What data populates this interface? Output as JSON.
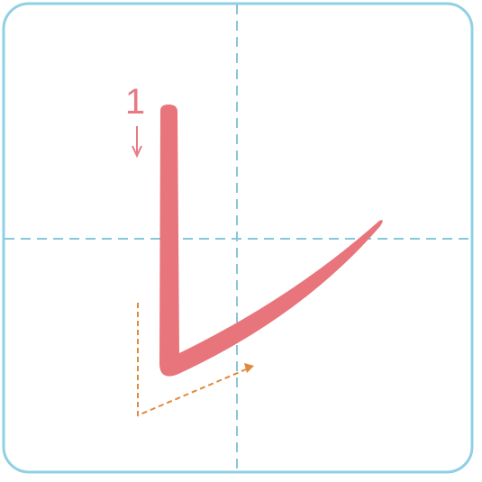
{
  "stroke": {
    "order_number": "1",
    "direction_icon": "down-arrow-icon",
    "guide_icon": "stroke-path-guide-icon"
  },
  "colors": {
    "frame_border": "#8fd0e4",
    "grid_lines": "#86c7dc",
    "stroke_fill": "#e8757c",
    "order_label": "#e67b84",
    "guide_arrow": "#e08a3c",
    "background": "#ffffff"
  }
}
